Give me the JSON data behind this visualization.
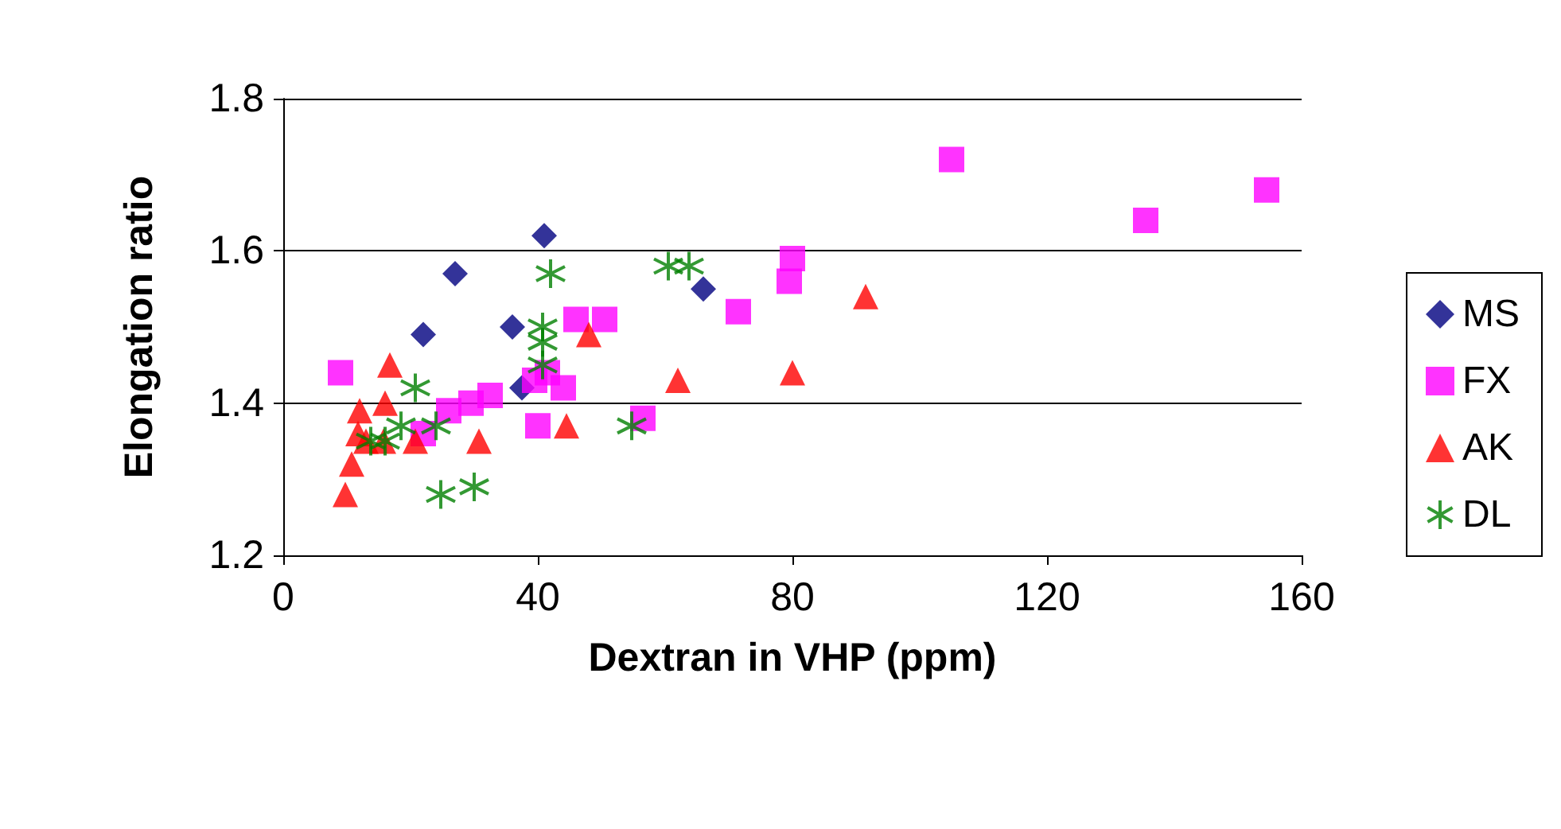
{
  "chart_data": {
    "type": "scatter",
    "xlabel": "Dextran in VHP (ppm)",
    "ylabel": "Elongation ratio",
    "xlim": [
      0,
      160
    ],
    "xticks": [
      0,
      40,
      80,
      120,
      160
    ],
    "ylim": [
      1.2,
      1.8
    ],
    "yticks": [
      1.2,
      1.4,
      1.6,
      1.8
    ],
    "grid": "y",
    "legend": "right",
    "series": [
      {
        "name": "MS",
        "color": "#000080",
        "marker": "diamond",
        "x": [
          22,
          27,
          36,
          37.5,
          41,
          66
        ],
        "values": [
          1.49,
          1.57,
          1.5,
          1.42,
          1.62,
          1.55
        ]
      },
      {
        "name": "FX",
        "color": "#ff00ff",
        "marker": "square",
        "x": [
          9,
          22,
          26,
          29.5,
          32.5,
          40,
          39.5,
          41.5,
          44,
          46,
          50.5,
          56.5,
          71.5,
          79.5,
          80,
          105,
          135.5,
          154.5
        ],
        "values": [
          1.44,
          1.36,
          1.39,
          1.4,
          1.41,
          1.37,
          1.43,
          1.44,
          1.42,
          1.51,
          1.51,
          1.38,
          1.52,
          1.56,
          1.59,
          1.72,
          1.64,
          1.68
        ]
      },
      {
        "name": "AK",
        "color": "#ff0000",
        "marker": "triangle",
        "x": [
          16.75,
          12,
          16,
          11.75,
          13,
          10.75,
          9.75,
          20.75,
          30.75,
          44.5,
          48,
          15.75,
          62,
          80,
          91.5
        ],
        "values": [
          1.45,
          1.39,
          1.4,
          1.36,
          1.35,
          1.32,
          1.28,
          1.35,
          1.35,
          1.37,
          1.49,
          1.35,
          1.43,
          1.44,
          1.54
        ]
      },
      {
        "name": "DL",
        "color": "#008000",
        "marker": "cross",
        "x": [
          20.75,
          18.5,
          16,
          13.75,
          24,
          24.75,
          30,
          42,
          40.75,
          40.75,
          40.75,
          54.75,
          60.5,
          63.75
        ],
        "values": [
          1.42,
          1.37,
          1.35,
          1.35,
          1.37,
          1.28,
          1.29,
          1.57,
          1.5,
          1.48,
          1.45,
          1.37,
          1.58,
          1.58
        ]
      }
    ]
  }
}
